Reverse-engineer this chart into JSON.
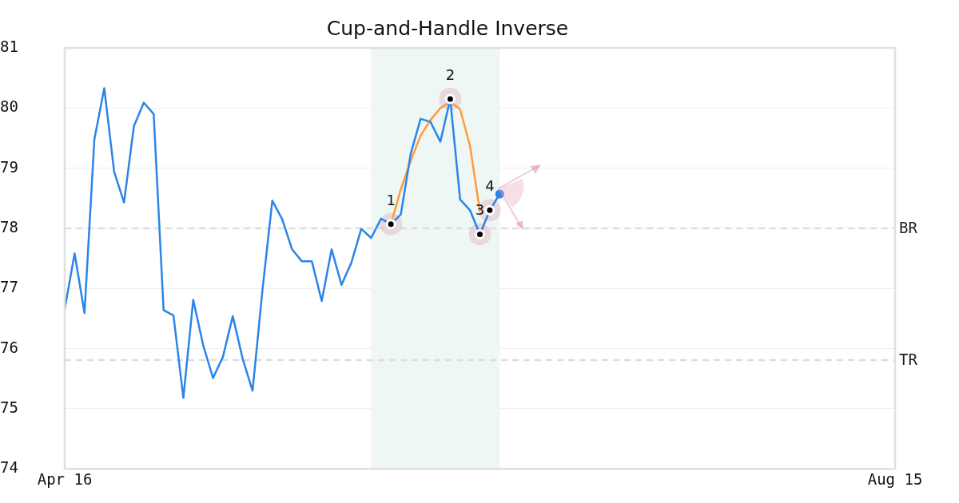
{
  "chart_data": {
    "type": "line",
    "title": "Cup-and-Handle Inverse",
    "categories": [
      "Apr 16",
      null,
      null,
      null,
      null,
      null,
      null,
      null,
      null,
      null,
      null,
      null,
      null,
      null,
      null,
      null,
      null,
      null,
      null,
      null,
      null,
      null,
      null,
      null,
      null,
      null,
      null,
      null,
      null,
      null,
      null,
      null,
      null,
      null,
      null,
      null,
      null,
      null,
      null,
      null,
      null,
      null,
      null,
      null,
      null,
      null,
      null,
      null,
      null,
      null,
      null,
      null,
      null,
      null,
      null,
      null,
      null,
      null,
      null,
      null,
      null,
      null,
      null,
      null,
      null,
      null,
      null,
      null,
      null,
      null,
      null,
      null,
      null,
      null,
      null,
      null,
      null,
      null,
      null,
      null,
      null,
      null,
      null,
      null,
      "Aug 15"
    ],
    "ylim": [
      74,
      81
    ],
    "yticks": [
      74,
      75,
      76,
      77,
      78,
      79,
      80,
      81
    ],
    "grid": "y",
    "line_style": "solid",
    "series": [
      {
        "color": "#2b84e8",
        "marker": "none",
        "values": [
          76.66,
          77.58,
          76.59,
          79.48,
          80.33,
          78.94,
          78.43,
          79.7,
          80.09,
          79.9,
          76.64,
          76.55,
          75.18,
          76.81,
          76.06,
          75.51,
          75.86,
          76.54,
          75.83,
          75.3,
          76.97,
          78.46,
          78.15,
          77.65,
          77.45,
          77.45,
          76.79,
          77.65,
          77.06,
          77.43,
          77.99,
          77.84,
          78.16,
          78.07,
          78.23,
          79.24,
          79.82,
          79.77,
          79.44,
          80.15,
          78.48,
          78.3,
          77.9,
          78.3,
          78.57,
          null,
          null,
          null,
          null,
          null,
          null,
          null,
          null,
          null,
          null,
          null,
          null,
          null,
          null,
          null,
          null,
          null,
          null,
          null,
          null,
          null,
          null,
          null,
          null,
          null,
          null,
          null,
          null,
          null,
          null,
          null,
          null,
          null,
          null,
          null,
          null,
          null,
          null,
          null,
          null
        ]
      },
      {
        "type": "line",
        "color": "#ff9a40",
        "marker": "none",
        "values": [
          null,
          null,
          null,
          null,
          null,
          null,
          null,
          null,
          null,
          null,
          null,
          null,
          null,
          null,
          null,
          null,
          null,
          null,
          null,
          null,
          null,
          null,
          null,
          null,
          null,
          null,
          null,
          null,
          null,
          null,
          null,
          null,
          null,
          78.07,
          78.65,
          79.12,
          79.54,
          79.8,
          80.0,
          80.1,
          79.98,
          79.37,
          78.28,
          null,
          null,
          null,
          null,
          null,
          null,
          null,
          null,
          null,
          null,
          null,
          null,
          null,
          null,
          null,
          null,
          null,
          null,
          null,
          null,
          null,
          null,
          null,
          null,
          null,
          null,
          null,
          null,
          null,
          null,
          null,
          null,
          null,
          null,
          null,
          null,
          null,
          null,
          null,
          null,
          null,
          null
        ]
      },
      {
        "type": "scatter",
        "color": "#000000",
        "marker": "circle",
        "values": [
          null,
          null,
          null,
          null,
          null,
          null,
          null,
          null,
          null,
          null,
          null,
          null,
          null,
          null,
          null,
          null,
          null,
          null,
          null,
          null,
          null,
          null,
          null,
          null,
          null,
          null,
          null,
          null,
          null,
          null,
          null,
          null,
          null,
          78.07,
          null,
          null,
          null,
          null,
          null,
          80.15,
          null,
          null,
          77.9,
          78.3,
          null,
          null,
          null,
          null,
          null,
          null,
          null,
          null,
          null,
          null,
          null,
          null,
          null,
          null,
          null,
          null,
          null,
          null,
          null,
          null,
          null,
          null,
          null,
          null,
          null,
          null,
          null,
          null,
          null,
          null,
          null,
          null,
          null,
          null,
          null,
          null,
          null,
          null,
          null,
          null,
          null
        ]
      },
      {
        "type": "scatter",
        "color": "#2b84e8",
        "marker": "circle",
        "values": [
          null,
          null,
          null,
          null,
          null,
          null,
          null,
          null,
          null,
          null,
          null,
          null,
          null,
          null,
          null,
          null,
          null,
          null,
          null,
          null,
          null,
          null,
          null,
          null,
          null,
          null,
          null,
          null,
          null,
          null,
          null,
          null,
          null,
          null,
          null,
          null,
          null,
          null,
          null,
          null,
          null,
          null,
          null,
          null,
          78.57,
          null,
          null,
          null,
          null,
          null,
          null,
          null,
          null,
          null,
          null,
          null,
          null,
          null,
          null,
          null,
          null,
          null,
          null,
          null,
          null,
          null,
          null,
          null,
          null,
          null,
          null,
          null,
          null,
          null,
          null,
          null,
          null,
          null,
          null,
          null,
          null,
          null,
          null,
          null,
          null
        ]
      }
    ],
    "ref_lines": [
      {
        "axis": "y",
        "value": 78.0,
        "label": "BR",
        "color": "#dddddd",
        "line_style": "dashed"
      },
      {
        "axis": "y",
        "value": 75.81,
        "label": "TR",
        "color": "#dddddd",
        "line_style": "dashed"
      }
    ],
    "annotations": [
      {
        "text": "1",
        "y": 78.07
      },
      {
        "text": "2",
        "y": 80.15
      },
      {
        "text": "3",
        "y": 77.9
      },
      {
        "text": "4",
        "y": 78.3
      }
    ]
  }
}
